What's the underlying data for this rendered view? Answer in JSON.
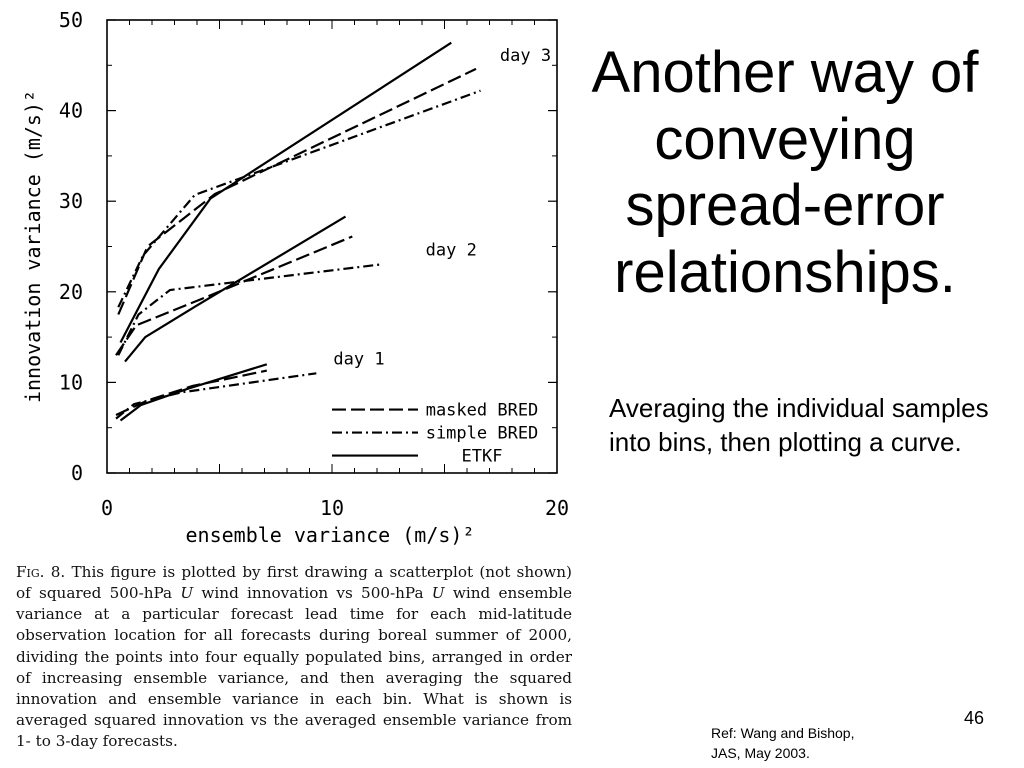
{
  "slide": {
    "title": "Another way of conveying spread-error relationships.",
    "body": "Averaging the individual samples into bins, then plotting a curve.",
    "reference": "Ref: Wang and Bishop,\nJAS, May 2003.",
    "page_number": "46"
  },
  "caption": {
    "fig_label": "Fig. 8.",
    "part1": " This figure is plotted by first drawing a scatterplot (not shown) of squared 500-hPa ",
    "var1": "U",
    "part2": " wind innovation vs 500-hPa ",
    "var2": "U",
    "part3": " wind ensemble variance at a particular forecast lead time for each mid-latitude observation location for all forecasts during boreal summer of 2000, dividing the points into four equally populated bins, arranged in order of increasing ensemble variance, and then averaging the squared innovation and ensemble variance in each bin. What is shown is averaged squared innovation vs the averaged ensemble variance from 1- to 3-day forecasts."
  },
  "chart_data": {
    "type": "line",
    "xlabel": "ensemble variance (m/s)²",
    "ylabel": "innovation variance (m/s)²",
    "xlim": [
      0,
      20
    ],
    "ylim": [
      0,
      50
    ],
    "xticks": [
      0,
      10,
      20
    ],
    "yticks": [
      0,
      10,
      20,
      30,
      40,
      50
    ],
    "legend_position": "bottom-right",
    "legend": [
      {
        "label": "masked BRED",
        "style": "dashed"
      },
      {
        "label": "simple BRED",
        "style": "dashdot"
      },
      {
        "label": "ETKF",
        "style": "solid"
      }
    ],
    "annotations": [
      {
        "text": "day 3",
        "x": 18.6,
        "y": 45.5
      },
      {
        "text": "day 2",
        "x": 15.3,
        "y": 24.0
      },
      {
        "text": "day 1",
        "x": 11.2,
        "y": 12.0
      }
    ],
    "series": [
      {
        "group": "day 1",
        "style": "solid",
        "points": [
          [
            0.6,
            5.8
          ],
          [
            1.5,
            7.5
          ],
          [
            3.6,
            9.3
          ],
          [
            7.1,
            12.0
          ]
        ]
      },
      {
        "group": "day 1",
        "style": "dashed",
        "points": [
          [
            0.4,
            6.4
          ],
          [
            1.8,
            8.0
          ],
          [
            3.8,
            9.6
          ],
          [
            7.1,
            11.3
          ]
        ]
      },
      {
        "group": "day 1",
        "style": "dashdot",
        "points": [
          [
            0.4,
            6.0
          ],
          [
            1.2,
            7.6
          ],
          [
            3.3,
            8.9
          ],
          [
            9.3,
            11.0
          ]
        ]
      },
      {
        "group": "day 2",
        "style": "solid",
        "points": [
          [
            0.8,
            12.3
          ],
          [
            1.7,
            15.0
          ],
          [
            4.0,
            18.5
          ],
          [
            10.6,
            28.3
          ]
        ]
      },
      {
        "group": "day 2",
        "style": "dashed",
        "points": [
          [
            0.4,
            13.0
          ],
          [
            1.3,
            16.3
          ],
          [
            4.2,
            19.2
          ],
          [
            10.9,
            26.1
          ]
        ]
      },
      {
        "group": "day 2",
        "style": "dashdot",
        "points": [
          [
            0.5,
            13.0
          ],
          [
            1.4,
            17.5
          ],
          [
            2.8,
            20.2
          ],
          [
            12.1,
            23.0
          ]
        ]
      },
      {
        "group": "day 3",
        "style": "solid",
        "points": [
          [
            0.6,
            14.4
          ],
          [
            2.3,
            22.5
          ],
          [
            4.6,
            30.3
          ],
          [
            15.3,
            47.5
          ]
        ]
      },
      {
        "group": "day 3",
        "style": "dashed",
        "points": [
          [
            0.5,
            17.5
          ],
          [
            1.8,
            25.0
          ],
          [
            4.8,
            30.8
          ],
          [
            16.4,
            44.6
          ]
        ]
      },
      {
        "group": "day 3",
        "style": "dashdot",
        "points": [
          [
            0.5,
            18.3
          ],
          [
            1.6,
            24.0
          ],
          [
            3.9,
            30.7
          ],
          [
            16.6,
            42.2
          ]
        ]
      }
    ]
  }
}
